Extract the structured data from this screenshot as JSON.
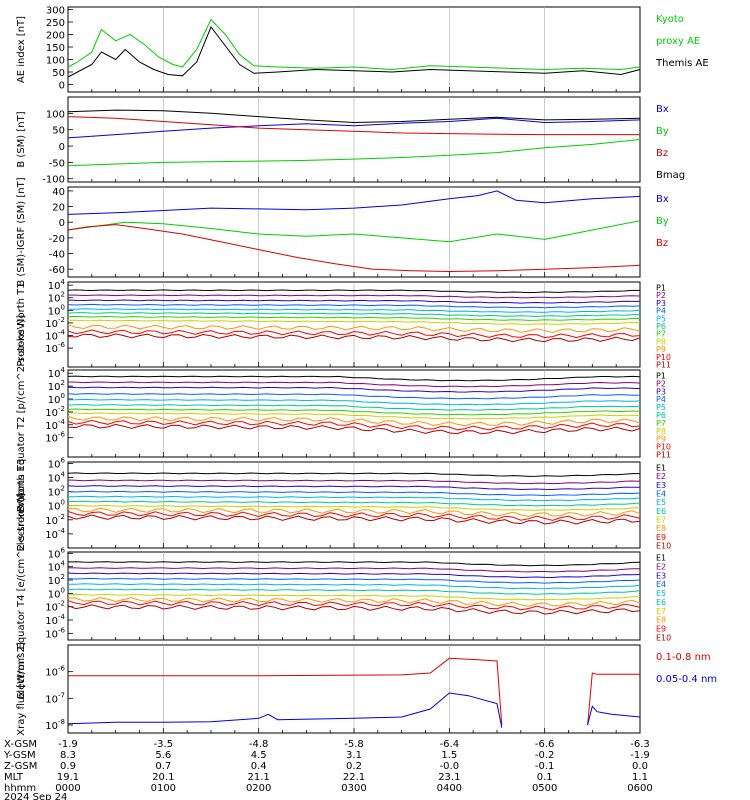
{
  "colors": {
    "black": "#000000",
    "green": "#00d000",
    "blue": "#0000e0",
    "red": "#e00000",
    "grid": "#aaaaaa"
  },
  "x_ticks": [
    {
      "xgsm": "-1.9",
      "ygsm": "8.3",
      "zgsm": "0.9",
      "mlt": "19.1",
      "hhmm": "0000"
    },
    {
      "xgsm": "-3.5",
      "ygsm": "5.6",
      "zgsm": "0.7",
      "mlt": "20.1",
      "hhmm": "0100"
    },
    {
      "xgsm": "-4.8",
      "ygsm": "4.5",
      "zgsm": "0.4",
      "mlt": "21.1",
      "hhmm": "0200"
    },
    {
      "xgsm": "-5.8",
      "ygsm": "3.1",
      "zgsm": "0.2",
      "mlt": "22.1",
      "hhmm": "0300"
    },
    {
      "xgsm": "-6.4",
      "ygsm": "1.5",
      "zgsm": "-0.0",
      "mlt": "23.1",
      "hhmm": "0400"
    },
    {
      "xgsm": "-6.6",
      "ygsm": "-0.2",
      "zgsm": "-0.1",
      "mlt": "0.1",
      "hhmm": "0500"
    },
    {
      "xgsm": "-6.3",
      "ygsm": "-1.9",
      "zgsm": "0.0",
      "mlt": "1.1",
      "hhmm": "0600"
    }
  ],
  "row_labels": [
    "X-GSM",
    "Y-GSM",
    "Z-GSM",
    "MLT",
    "hhmm"
  ],
  "date_label": "2024 Sep 24",
  "chart_data": [
    {
      "type": "line",
      "ylabel": "AE index [nT]",
      "ylim": [
        -30,
        310
      ],
      "yticks": [
        {
          "v": 300,
          "t": "300"
        },
        {
          "v": 250,
          "t": "250"
        },
        {
          "v": 200,
          "t": "200"
        },
        {
          "v": 150,
          "t": "150"
        },
        {
          "v": 100,
          "t": "100"
        },
        {
          "v": 50,
          "t": "50"
        },
        {
          "v": 0,
          "t": "0"
        }
      ],
      "legend": [
        {
          "text": "Kyoto",
          "color": "green"
        },
        {
          "text": "proxy AE",
          "color": "green"
        },
        {
          "text": "Themis AE",
          "color": "black"
        }
      ],
      "series": [
        {
          "name": "Kyoto proxy AE",
          "color": "green",
          "x": [
            0,
            0.1,
            0.25,
            0.35,
            0.5,
            0.65,
            0.8,
            0.95,
            1.1,
            1.2,
            1.35,
            1.5,
            1.65,
            1.8,
            1.95,
            2.2,
            2.6,
            3.0,
            3.4,
            3.8,
            4.2,
            4.6,
            5.0,
            5.4,
            5.8,
            6.0
          ],
          "y": [
            70,
            90,
            130,
            220,
            175,
            200,
            160,
            110,
            80,
            70,
            140,
            260,
            200,
            120,
            75,
            70,
            65,
            70,
            60,
            75,
            70,
            65,
            60,
            65,
            60,
            70
          ]
        },
        {
          "name": "Themis AE",
          "color": "black",
          "x": [
            0,
            0.1,
            0.25,
            0.35,
            0.5,
            0.6,
            0.75,
            0.9,
            1.05,
            1.2,
            1.35,
            1.5,
            1.62,
            1.8,
            1.95,
            2.2,
            2.6,
            3.0,
            3.4,
            3.8,
            4.2,
            4.6,
            5.0,
            5.4,
            5.8,
            6.0
          ],
          "y": [
            30,
            50,
            80,
            130,
            100,
            140,
            90,
            60,
            40,
            35,
            90,
            230,
            170,
            80,
            45,
            50,
            60,
            55,
            50,
            60,
            55,
            50,
            45,
            55,
            40,
            60
          ]
        }
      ]
    },
    {
      "type": "line",
      "ylabel": "B (SM) [nT]",
      "ylim": [
        -110,
        150
      ],
      "yticks": [
        {
          "v": 100,
          "t": "100"
        },
        {
          "v": 50,
          "t": "50"
        },
        {
          "v": 0,
          "t": "0"
        },
        {
          "v": -50,
          "t": "-50"
        },
        {
          "v": -100,
          "t": "-100"
        }
      ],
      "legend": [
        {
          "text": "Bx",
          "color": "blue"
        },
        {
          "text": "By",
          "color": "green"
        },
        {
          "text": "Bz",
          "color": "red"
        },
        {
          "text": "Bmag",
          "color": "black"
        }
      ],
      "series": [
        {
          "name": "Bmag",
          "color": "black",
          "x": [
            0,
            0.5,
            1,
            1.5,
            2,
            2.5,
            3,
            3.5,
            4,
            4.5,
            5,
            5.5,
            6
          ],
          "y": [
            105,
            110,
            108,
            100,
            90,
            80,
            72,
            75,
            82,
            88,
            80,
            82,
            85
          ]
        },
        {
          "name": "Bx",
          "color": "blue",
          "x": [
            0,
            0.5,
            1,
            1.5,
            2,
            2.5,
            3,
            3.5,
            4,
            4.5,
            5,
            5.5,
            6
          ],
          "y": [
            25,
            35,
            45,
            55,
            62,
            68,
            62,
            70,
            75,
            85,
            72,
            75,
            80
          ]
        },
        {
          "name": "Bz",
          "color": "red",
          "x": [
            0,
            0.5,
            1,
            1.5,
            2,
            2.5,
            3,
            3.5,
            4,
            4.5,
            5,
            5.5,
            6
          ],
          "y": [
            90,
            85,
            75,
            65,
            55,
            50,
            45,
            40,
            38,
            36,
            35,
            35,
            35
          ]
        },
        {
          "name": "By",
          "color": "green",
          "x": [
            0,
            0.5,
            1,
            1.5,
            2,
            2.5,
            3,
            3.5,
            4,
            4.5,
            5,
            5.5,
            6
          ],
          "y": [
            -60,
            -55,
            -50,
            -48,
            -46,
            -44,
            -40,
            -35,
            -28,
            -20,
            -5,
            5,
            20
          ]
        }
      ]
    },
    {
      "type": "line",
      "ylabel": "B (SM)-IGRF (SM) [nT]",
      "ylim": [
        -70,
        45
      ],
      "yticks": [
        {
          "v": 40,
          "t": "40"
        },
        {
          "v": 20,
          "t": "20"
        },
        {
          "v": 0,
          "t": "0"
        },
        {
          "v": -20,
          "t": "-20"
        },
        {
          "v": -40,
          "t": "-40"
        },
        {
          "v": -60,
          "t": "-60"
        }
      ],
      "legend": [
        {
          "text": "Bx",
          "color": "blue"
        },
        {
          "text": "By",
          "color": "green"
        },
        {
          "text": "Bz",
          "color": "red"
        }
      ],
      "series": [
        {
          "name": "Bx",
          "color": "blue",
          "x": [
            0,
            0.5,
            1,
            1.5,
            2,
            2.5,
            3,
            3.5,
            4,
            4.3,
            4.5,
            4.7,
            5,
            5.5,
            6
          ],
          "y": [
            10,
            12,
            15,
            18,
            17,
            16,
            18,
            22,
            30,
            34,
            40,
            28,
            25,
            30,
            33
          ]
        },
        {
          "name": "By",
          "color": "green",
          "x": [
            0,
            0.3,
            0.6,
            1,
            1.5,
            2,
            2.5,
            3,
            3.5,
            4,
            4.5,
            5,
            5.5,
            6
          ],
          "y": [
            -10,
            -5,
            0,
            -2,
            -8,
            -15,
            -18,
            -15,
            -20,
            -25,
            -15,
            -22,
            -10,
            2
          ]
        },
        {
          "name": "Bz",
          "color": "red",
          "x": [
            0,
            0.2,
            0.5,
            0.8,
            1.2,
            1.6,
            2,
            2.4,
            2.8,
            3.2,
            3.6,
            4,
            4.5,
            5,
            5.5,
            6
          ],
          "y": [
            -10,
            -6,
            -3,
            -8,
            -15,
            -25,
            -35,
            -45,
            -53,
            -60,
            -62,
            -63,
            -62,
            -60,
            -58,
            -55
          ]
        }
      ]
    },
    {
      "type": "line",
      "log": true,
      "ylabel": "Protons North T1",
      "ylim": [
        -9,
        4.5
      ],
      "yticks": [
        {
          "v": 4,
          "t": "10^4"
        },
        {
          "v": 2,
          "t": "10^2"
        },
        {
          "v": 0,
          "t": "10^0"
        },
        {
          "v": -2,
          "t": "10^-2"
        },
        {
          "v": -4,
          "t": "10^-4"
        },
        {
          "v": -6,
          "t": "10^-6"
        }
      ],
      "legend": [
        {
          "text": "P1",
          "color": "#000000"
        },
        {
          "text": "P2",
          "color": "#8b0070"
        },
        {
          "text": "P3",
          "color": "#2a00c8"
        },
        {
          "text": "P4",
          "color": "#0060ff"
        },
        {
          "text": "P5",
          "color": "#00b4e6"
        },
        {
          "text": "P6",
          "color": "#00c896"
        },
        {
          "text": "P7",
          "color": "#32d200"
        },
        {
          "text": "P8",
          "color": "#c8d200"
        },
        {
          "text": "P9",
          "color": "#ff9600"
        },
        {
          "text": "P10",
          "color": "#ff0000"
        },
        {
          "text": "P11",
          "color": "#b40000"
        }
      ],
      "bands": {
        "base": [
          3.2,
          2.4,
          1.6,
          0.9,
          0.2,
          -0.4,
          -1.0,
          -1.6,
          -2.6,
          -3.4,
          -4.0
        ],
        "dip": {
          "start": 3.6,
          "end": 6.0,
          "amount": 0.5
        }
      }
    },
    {
      "type": "line",
      "log": true,
      "ylabel": "Protons Equator T2 [p/(cm^2-s-sr-keV)]",
      "ylim": [
        -9,
        4.5
      ],
      "yticks": [
        {
          "v": 4,
          "t": "10^4"
        },
        {
          "v": 2,
          "t": "10^2"
        },
        {
          "v": 0,
          "t": "10^0"
        },
        {
          "v": -2,
          "t": "10^-2"
        },
        {
          "v": -4,
          "t": "10^-4"
        },
        {
          "v": -6,
          "t": "10^-6"
        }
      ],
      "legend": [
        {
          "text": "P1",
          "color": "#000000"
        },
        {
          "text": "P2",
          "color": "#8b0070"
        },
        {
          "text": "P3",
          "color": "#2a00c8"
        },
        {
          "text": "P4",
          "color": "#0060ff"
        },
        {
          "text": "P5",
          "color": "#00b4e6"
        },
        {
          "text": "P6",
          "color": "#00c896"
        },
        {
          "text": "P7",
          "color": "#32d200"
        },
        {
          "text": "P8",
          "color": "#c8d200"
        },
        {
          "text": "P9",
          "color": "#ff9600"
        },
        {
          "text": "P10",
          "color": "#ff0000"
        },
        {
          "text": "P11",
          "color": "#b40000"
        }
      ],
      "bands": {
        "base": [
          3.5,
          2.6,
          1.8,
          0.8,
          -0.1,
          -0.9,
          -1.6,
          -2.2,
          -3.0,
          -3.6,
          -4.2
        ],
        "dip": {
          "start": 2.8,
          "end": 5.5,
          "amount": 1.0
        }
      }
    },
    {
      "type": "line",
      "log": true,
      "ylabel": "Electrons North T3",
      "ylim": [
        -6,
        6.2
      ],
      "yticks": [
        {
          "v": 6,
          "t": "10^6"
        },
        {
          "v": 4,
          "t": "10^4"
        },
        {
          "v": 2,
          "t": "10^2"
        },
        {
          "v": 0,
          "t": "10^0"
        },
        {
          "v": -2,
          "t": "10^-2"
        },
        {
          "v": -4,
          "t": "10^-4"
        }
      ],
      "legend": [
        {
          "text": "E1",
          "color": "#000000"
        },
        {
          "text": "E2",
          "color": "#8b0070"
        },
        {
          "text": "E3",
          "color": "#2a00c8"
        },
        {
          "text": "E4",
          "color": "#0060ff"
        },
        {
          "text": "E5",
          "color": "#00b4e6"
        },
        {
          "text": "E6",
          "color": "#00c896"
        },
        {
          "text": "E7",
          "color": "#c8d200"
        },
        {
          "text": "E8",
          "color": "#ff9600"
        },
        {
          "text": "E9",
          "color": "#ff0000"
        },
        {
          "text": "E10",
          "color": "#b40000"
        }
      ],
      "bands": {
        "base": [
          4.6,
          3.6,
          2.8,
          2.0,
          1.3,
          0.6,
          0.0,
          -0.6,
          -1.1,
          -1.6
        ],
        "dip": {
          "start": 3.8,
          "end": 6.0,
          "amount": 0.6
        }
      }
    },
    {
      "type": "line",
      "log": true,
      "ylabel": "Electrons Equator T4 [e/(cm^2-s-sr-keV)]",
      "ylim": [
        -7,
        6.2
      ],
      "yticks": [
        {
          "v": 6,
          "t": "10^6"
        },
        {
          "v": 4,
          "t": "10^4"
        },
        {
          "v": 2,
          "t": "10^2"
        },
        {
          "v": 0,
          "t": "10^0"
        },
        {
          "v": -2,
          "t": "10^-2"
        },
        {
          "v": -4,
          "t": "10^-4"
        },
        {
          "v": -6,
          "t": "10^-6"
        }
      ],
      "legend": [
        {
          "text": "E1",
          "color": "#000000"
        },
        {
          "text": "E2",
          "color": "#8b0070"
        },
        {
          "text": "E3",
          "color": "#2a00c8"
        },
        {
          "text": "E4",
          "color": "#0060ff"
        },
        {
          "text": "E5",
          "color": "#00b4e6"
        },
        {
          "text": "E6",
          "color": "#00c896"
        },
        {
          "text": "E7",
          "color": "#c8d200"
        },
        {
          "text": "E8",
          "color": "#ff9600"
        },
        {
          "text": "E9",
          "color": "#ff0000"
        },
        {
          "text": "E10",
          "color": "#b40000"
        }
      ],
      "bands": {
        "base": [
          4.7,
          3.8,
          3.0,
          2.2,
          1.4,
          0.6,
          -0.2,
          -0.9,
          -1.4,
          -2.0
        ],
        "dip": {
          "start": 3.8,
          "end": 6.0,
          "amount": 0.8
        }
      }
    },
    {
      "type": "line",
      "log": true,
      "ylabel": "Xray flux [W/m^2]",
      "ylim": [
        -8.3,
        -5
      ],
      "yticks": [
        {
          "v": -6,
          "t": "10^-6"
        },
        {
          "v": -7,
          "t": "10^-7"
        },
        {
          "v": -8,
          "t": "10^-8"
        }
      ],
      "legend": [
        {
          "text": "0.1-0.8 nm",
          "color": "red"
        },
        {
          "text": "0.05-0.4 nm",
          "color": "blue"
        }
      ],
      "series": [
        {
          "name": "0.1-0.8 nm",
          "color": "red",
          "x": [
            0,
            1,
            2,
            3,
            3.5,
            3.8,
            4.0,
            4.3,
            4.5,
            4.55
          ],
          "y": [
            -6.15,
            -6.15,
            -6.15,
            -6.13,
            -6.12,
            -6.05,
            -5.5,
            -5.55,
            -5.6,
            -8.0
          ]
        },
        {
          "name": "0.1-0.8 nm (b)",
          "color": "red",
          "x": [
            5.45,
            5.5,
            5.55,
            5.7,
            6.0
          ],
          "y": [
            -8.0,
            -6.05,
            -6.1,
            -6.1,
            -6.1
          ]
        },
        {
          "name": "0.05-0.4 nm",
          "color": "blue",
          "x": [
            0,
            0.5,
            1,
            1.5,
            2.0,
            2.1,
            2.2,
            3,
            3.5,
            3.8,
            4.0,
            4.2,
            4.5,
            4.55
          ],
          "y": [
            -7.95,
            -7.9,
            -7.9,
            -7.88,
            -7.75,
            -7.6,
            -7.8,
            -7.75,
            -7.7,
            -7.4,
            -6.8,
            -6.9,
            -7.2,
            -8.1
          ]
        },
        {
          "name": "0.05-0.4 nm (b)",
          "color": "blue",
          "x": [
            5.45,
            5.5,
            5.55,
            5.7,
            6.0
          ],
          "y": [
            -8.0,
            -7.3,
            -7.5,
            -7.6,
            -7.7
          ]
        }
      ]
    }
  ]
}
